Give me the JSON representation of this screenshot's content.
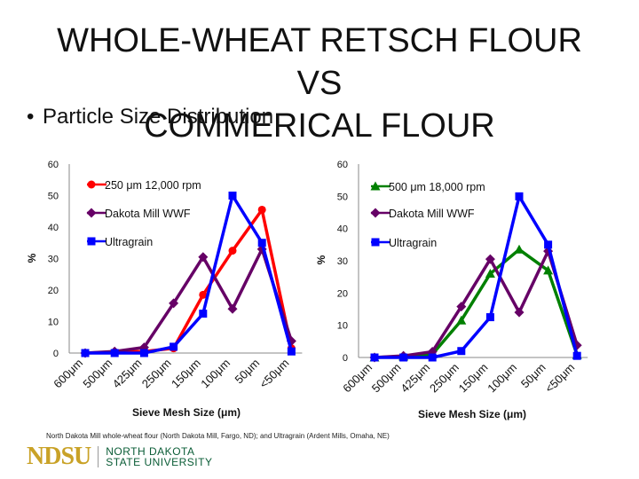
{
  "slide": {
    "title_line1": "WHOLE-WHEAT RETSCH FLOUR VS",
    "title_line2": "COMMERICAL FLOUR",
    "bullet": "Particle Size Distribution",
    "footnote": "North Dakota Mill whole-wheat flour (North Dakota Mill, Fargo, ND); and Ultragrain (Ardent Mills, Omaha, NE)",
    "logo_text": "NDSU",
    "logo_sub1": "NORTH DAKOTA",
    "logo_sub2": "STATE UNIVERSITY"
  },
  "chart_data": [
    {
      "type": "line",
      "categories": [
        "600μm",
        "500μm",
        "425μm",
        "250μm",
        "150μm",
        "100μm",
        "50μm",
        "<50μm"
      ],
      "ylabel": "%",
      "xlabel": "Sieve Mesh Size (μm)",
      "ylim": [
        0,
        60
      ],
      "yticks": [
        0,
        10,
        20,
        30,
        40,
        50,
        60
      ],
      "grid": false,
      "legend": "top-left",
      "series": [
        {
          "name": "250 μm 12,000 rpm",
          "color": "#ff0000",
          "marker": "circle",
          "values": [
            0,
            0.3,
            0.5,
            1.5,
            18.5,
            32.5,
            45.5,
            1.5
          ]
        },
        {
          "name": "Dakota Mill WWF",
          "color": "#660066",
          "marker": "diamond",
          "values": [
            0,
            0.5,
            1.8,
            15.8,
            30.5,
            14,
            33,
            3.8
          ]
        },
        {
          "name": "Ultragrain",
          "color": "#0000ff",
          "marker": "square",
          "values": [
            0,
            0,
            0,
            2,
            12.5,
            50,
            35,
            0.5
          ]
        }
      ]
    },
    {
      "type": "line",
      "categories": [
        "600μm",
        "500μm",
        "425μm",
        "250μm",
        "150μm",
        "100μm",
        "50μm",
        "<50μm"
      ],
      "ylabel": "%",
      "xlabel": "Sieve Mesh Size (μm)",
      "ylim": [
        0,
        60
      ],
      "yticks": [
        0,
        10,
        20,
        30,
        40,
        50,
        60
      ],
      "grid": false,
      "legend": "top-left",
      "series": [
        {
          "name": "500 μm 18,000 rpm",
          "color": "#008000",
          "marker": "triangle",
          "values": [
            0,
            0.3,
            1,
            11.5,
            26,
            33.5,
            27,
            0.8
          ]
        },
        {
          "name": "Dakota Mill WWF",
          "color": "#660066",
          "marker": "diamond",
          "values": [
            0,
            0.5,
            1.8,
            15.8,
            30.5,
            14,
            33,
            3.8
          ]
        },
        {
          "name": "Ultragrain",
          "color": "#0000ff",
          "marker": "square",
          "values": [
            0,
            0,
            0,
            2,
            12.5,
            50,
            35,
            0.5
          ]
        }
      ]
    }
  ]
}
